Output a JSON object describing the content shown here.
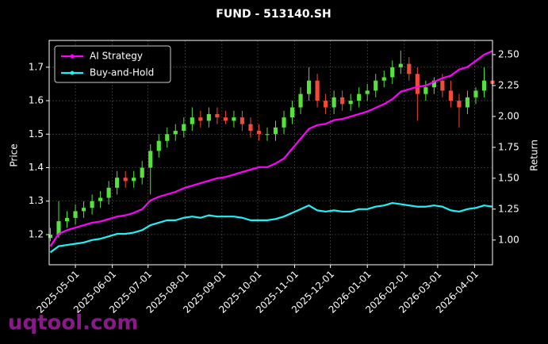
{
  "chart_data": {
    "type": "candlestick",
    "title": "FUND - 513140.SH",
    "x": [
      "2025-04-10",
      "2025-04-17",
      "2025-04-24",
      "2025-05-01",
      "2025-05-08",
      "2025-05-15",
      "2025-05-22",
      "2025-05-29",
      "2025-06-05",
      "2025-06-12",
      "2025-06-19",
      "2025-06-26",
      "2025-07-03",
      "2025-07-10",
      "2025-07-17",
      "2025-07-24",
      "2025-07-31",
      "2025-08-07",
      "2025-08-14",
      "2025-08-21",
      "2025-08-28",
      "2025-09-04",
      "2025-09-11",
      "2025-09-18",
      "2025-09-25",
      "2025-10-02",
      "2025-10-09",
      "2025-10-16",
      "2025-10-23",
      "2025-10-30",
      "2025-11-06",
      "2025-11-13",
      "2025-11-20",
      "2025-11-27",
      "2025-12-04",
      "2025-12-11",
      "2025-12-18",
      "2025-12-25",
      "2026-01-01",
      "2026-01-08",
      "2026-01-15",
      "2026-01-22",
      "2026-01-29",
      "2026-02-05",
      "2026-02-12",
      "2026-02-19",
      "2026-02-26",
      "2026-03-05",
      "2026-03-12",
      "2026-03-19",
      "2026-03-26",
      "2026-04-02",
      "2026-04-09",
      "2026-04-16"
    ],
    "open": [
      1.19,
      1.2,
      1.24,
      1.25,
      1.27,
      1.28,
      1.3,
      1.31,
      1.34,
      1.37,
      1.36,
      1.37,
      1.4,
      1.45,
      1.48,
      1.5,
      1.51,
      1.53,
      1.55,
      1.54,
      1.56,
      1.55,
      1.54,
      1.55,
      1.53,
      1.51,
      1.5,
      1.5,
      1.52,
      1.55,
      1.58,
      1.62,
      1.66,
      1.6,
      1.58,
      1.61,
      1.59,
      1.6,
      1.62,
      1.63,
      1.66,
      1.67,
      1.7,
      1.71,
      1.68,
      1.62,
      1.64,
      1.66,
      1.63,
      1.6,
      1.58,
      1.61,
      1.63,
      1.66
    ],
    "high": [
      1.22,
      1.3,
      1.27,
      1.29,
      1.3,
      1.32,
      1.33,
      1.36,
      1.39,
      1.39,
      1.39,
      1.42,
      1.47,
      1.5,
      1.52,
      1.53,
      1.55,
      1.58,
      1.57,
      1.58,
      1.58,
      1.57,
      1.57,
      1.57,
      1.55,
      1.53,
      1.52,
      1.54,
      1.57,
      1.6,
      1.64,
      1.7,
      1.68,
      1.62,
      1.63,
      1.63,
      1.62,
      1.64,
      1.65,
      1.68,
      1.69,
      1.72,
      1.75,
      1.73,
      1.7,
      1.66,
      1.67,
      1.68,
      1.66,
      1.62,
      1.63,
      1.64,
      1.7,
      1.68
    ],
    "low": [
      1.18,
      1.19,
      1.22,
      1.23,
      1.25,
      1.26,
      1.28,
      1.29,
      1.32,
      1.34,
      1.34,
      1.35,
      1.32,
      1.43,
      1.46,
      1.48,
      1.49,
      1.51,
      1.52,
      1.52,
      1.53,
      1.53,
      1.52,
      1.51,
      1.49,
      1.48,
      1.48,
      1.48,
      1.5,
      1.53,
      1.56,
      1.6,
      1.58,
      1.56,
      1.56,
      1.57,
      1.57,
      1.58,
      1.6,
      1.61,
      1.64,
      1.65,
      1.68,
      1.66,
      1.54,
      1.6,
      1.62,
      1.61,
      1.58,
      1.52,
      1.56,
      1.59,
      1.61,
      1.63
    ],
    "close": [
      1.2,
      1.24,
      1.25,
      1.27,
      1.28,
      1.3,
      1.31,
      1.34,
      1.37,
      1.36,
      1.37,
      1.4,
      1.45,
      1.48,
      1.5,
      1.51,
      1.53,
      1.55,
      1.54,
      1.56,
      1.55,
      1.54,
      1.55,
      1.53,
      1.51,
      1.5,
      1.5,
      1.52,
      1.55,
      1.58,
      1.62,
      1.66,
      1.6,
      1.58,
      1.61,
      1.59,
      1.6,
      1.62,
      1.63,
      1.66,
      1.67,
      1.7,
      1.71,
      1.68,
      1.62,
      1.64,
      1.66,
      1.63,
      1.6,
      1.58,
      1.61,
      1.63,
      1.66,
      1.65
    ],
    "up_color": "#55e33b",
    "down_color": "#f04a3a",
    "series": [
      {
        "name": "AI Strategy",
        "color": "#ff00ff",
        "axis": "y2",
        "values": [
          0.95,
          1.05,
          1.08,
          1.1,
          1.12,
          1.14,
          1.15,
          1.17,
          1.19,
          1.2,
          1.22,
          1.25,
          1.32,
          1.35,
          1.37,
          1.39,
          1.42,
          1.44,
          1.46,
          1.48,
          1.5,
          1.51,
          1.53,
          1.55,
          1.57,
          1.59,
          1.59,
          1.62,
          1.66,
          1.74,
          1.82,
          1.9,
          1.93,
          1.94,
          1.97,
          1.98,
          2.0,
          2.02,
          2.04,
          2.07,
          2.1,
          2.14,
          2.2,
          2.22,
          2.24,
          2.25,
          2.28,
          2.31,
          2.33,
          2.38,
          2.4,
          2.45,
          2.5,
          2.53
        ]
      },
      {
        "name": "Buy-and-Hold",
        "color": "#1ef2f7",
        "axis": "y2",
        "values": [
          0.9,
          0.95,
          0.96,
          0.97,
          0.98,
          1.0,
          1.01,
          1.03,
          1.05,
          1.05,
          1.06,
          1.08,
          1.12,
          1.14,
          1.16,
          1.16,
          1.18,
          1.19,
          1.18,
          1.2,
          1.19,
          1.19,
          1.19,
          1.18,
          1.16,
          1.16,
          1.16,
          1.17,
          1.19,
          1.22,
          1.25,
          1.28,
          1.24,
          1.23,
          1.24,
          1.23,
          1.23,
          1.25,
          1.25,
          1.27,
          1.28,
          1.3,
          1.29,
          1.28,
          1.27,
          1.27,
          1.28,
          1.27,
          1.24,
          1.23,
          1.25,
          1.26,
          1.28,
          1.27
        ]
      }
    ],
    "xlim": [
      "2025-04-09",
      "2026-04-16"
    ],
    "xticks": [
      "2025-05-01",
      "2025-06-01",
      "2025-07-01",
      "2025-08-01",
      "2025-09-01",
      "2025-10-01",
      "2025-11-01",
      "2025-12-01",
      "2026-01-01",
      "2026-02-01",
      "2026-03-01",
      "2026-04-01"
    ],
    "ylabel": "Price",
    "ylim": [
      1.11,
      1.78
    ],
    "yticks": [
      1.2,
      1.3,
      1.4,
      1.5,
      1.6,
      1.7
    ],
    "y2label": "Return",
    "y2lim": [
      0.8,
      2.615
    ],
    "y2ticks": [
      {
        "value": 1,
        "label": "1.00"
      },
      {
        "value": 1.25,
        "label": "1.25"
      },
      {
        "value": 1.5,
        "label": "1.50"
      },
      {
        "value": 1.75,
        "label": "1.75"
      },
      {
        "value": 2,
        "label": "2.00"
      },
      {
        "value": 2.25,
        "label": "2.25"
      },
      {
        "value": 2.5,
        "label": "2.50"
      }
    ],
    "grid": true,
    "legend": "upper left"
  },
  "watermark": "uqtool.com"
}
